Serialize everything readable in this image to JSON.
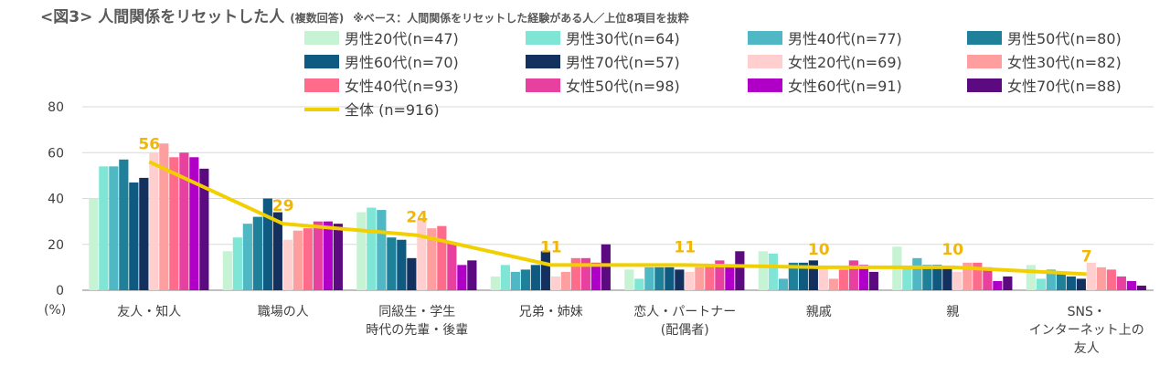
{
  "title": "<図3> 人間関係をリセットした人",
  "subtitle": "(複数回答)",
  "note": "※ベース：人間関係をリセットした経験がある人／上位8項目を抜粋",
  "chart_data": {
    "type": "bar",
    "ylabel": "(%)",
    "ylim": [
      0,
      80
    ],
    "yticks": [
      0,
      20,
      40,
      60,
      80
    ],
    "categories": [
      [
        "友人・知人"
      ],
      [
        "職場の人"
      ],
      [
        "同級生・学生",
        "時代の先輩・後輩"
      ],
      [
        "兄弟・姉妹"
      ],
      [
        "恋人・パートナー",
        "(配偶者)"
      ],
      [
        "親戚"
      ],
      [
        "親"
      ],
      [
        "SNS・",
        "インターネット上の",
        "友人"
      ]
    ],
    "legend_position": "top",
    "series": [
      {
        "name": "男性20代(n=47)",
        "color": "#c6f3d4",
        "values": [
          40,
          17,
          34,
          6,
          9,
          17,
          19,
          11
        ]
      },
      {
        "name": "男性30代(n=64)",
        "color": "#7fe6d6",
        "values": [
          54,
          23,
          36,
          11,
          5,
          16,
          10,
          5
        ]
      },
      {
        "name": "男性40代(n=77)",
        "color": "#4fb8c4",
        "values": [
          54,
          29,
          35,
          8,
          10,
          5,
          14,
          9
        ]
      },
      {
        "name": "男性50代(n=80)",
        "color": "#1f8099",
        "values": [
          57,
          32,
          23,
          9,
          10,
          12,
          11,
          8
        ]
      },
      {
        "name": "男性60代(n=70)",
        "color": "#0e5a80",
        "values": [
          47,
          40,
          22,
          11,
          10,
          12,
          11,
          6
        ]
      },
      {
        "name": "男性70代(n=57)",
        "color": "#14305e",
        "values": [
          49,
          34,
          14,
          17,
          9,
          13,
          10,
          5
        ]
      },
      {
        "name": "女性20代(n=69)",
        "color": "#ffcfcf",
        "values": [
          60,
          22,
          31,
          6,
          8,
          10,
          8,
          12
        ]
      },
      {
        "name": "女性30代(n=82)",
        "color": "#ff9e9e",
        "values": [
          64,
          26,
          27,
          8,
          10,
          5,
          12,
          10
        ]
      },
      {
        "name": "女性40代(n=93)",
        "color": "#ff6b8a",
        "values": [
          58,
          27,
          28,
          14,
          11,
          9,
          12,
          9
        ]
      },
      {
        "name": "女性50代(n=98)",
        "color": "#e8409e",
        "values": [
          60,
          30,
          21,
          14,
          13,
          13,
          10,
          6
        ]
      },
      {
        "name": "女性60代(n=91)",
        "color": "#b000c8",
        "values": [
          58,
          30,
          11,
          12,
          10,
          11,
          4,
          4
        ]
      },
      {
        "name": "女性70代(n=88)",
        "color": "#5c0a80",
        "values": [
          53,
          29,
          13,
          20,
          17,
          8,
          6,
          2
        ]
      }
    ],
    "line_series": {
      "name": "全体 (n=916)",
      "color": "#f2d000",
      "values": [
        56,
        29,
        24,
        11,
        11,
        10,
        10,
        7
      ],
      "labels": [
        "56",
        "29",
        "24",
        "11",
        "11",
        "10",
        "10",
        "7"
      ]
    }
  }
}
